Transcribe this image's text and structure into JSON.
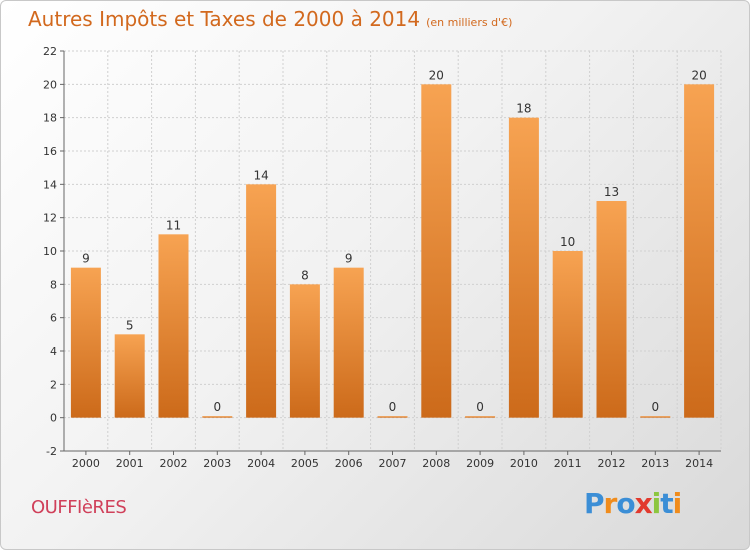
{
  "chart_data": {
    "type": "bar",
    "title": "Autres Impôts et Taxes de 2000 à 2014",
    "subtitle": "(en milliers d'€)",
    "categories": [
      "2000",
      "2001",
      "2002",
      "2003",
      "2004",
      "2005",
      "2006",
      "2007",
      "2008",
      "2009",
      "2010",
      "2011",
      "2012",
      "2013",
      "2014"
    ],
    "values": [
      9,
      5,
      11,
      0,
      14,
      8,
      9,
      0,
      20,
      0,
      18,
      10,
      13,
      0,
      20
    ],
    "ylim": [
      -2,
      22
    ],
    "yticks": [
      -2,
      0,
      2,
      4,
      6,
      8,
      10,
      12,
      14,
      16,
      18,
      20,
      22
    ],
    "grid": true,
    "bar_color_top": "#f7a352",
    "bar_color_bottom": "#cc6a1a"
  },
  "footer": {
    "city": "OUFFIèRES",
    "logo_letters": [
      {
        "ch": "P",
        "color": "#3b8ed6"
      },
      {
        "ch": "r",
        "color": "#f08c1c"
      },
      {
        "ch": "o",
        "color": "#3b8ed6"
      },
      {
        "ch": "x",
        "color": "#e23a2e"
      },
      {
        "ch": "i",
        "color": "#8cc63f"
      },
      {
        "ch": "t",
        "color": "#3b8ed6"
      },
      {
        "ch": "i",
        "color": "#f08c1c"
      }
    ]
  }
}
